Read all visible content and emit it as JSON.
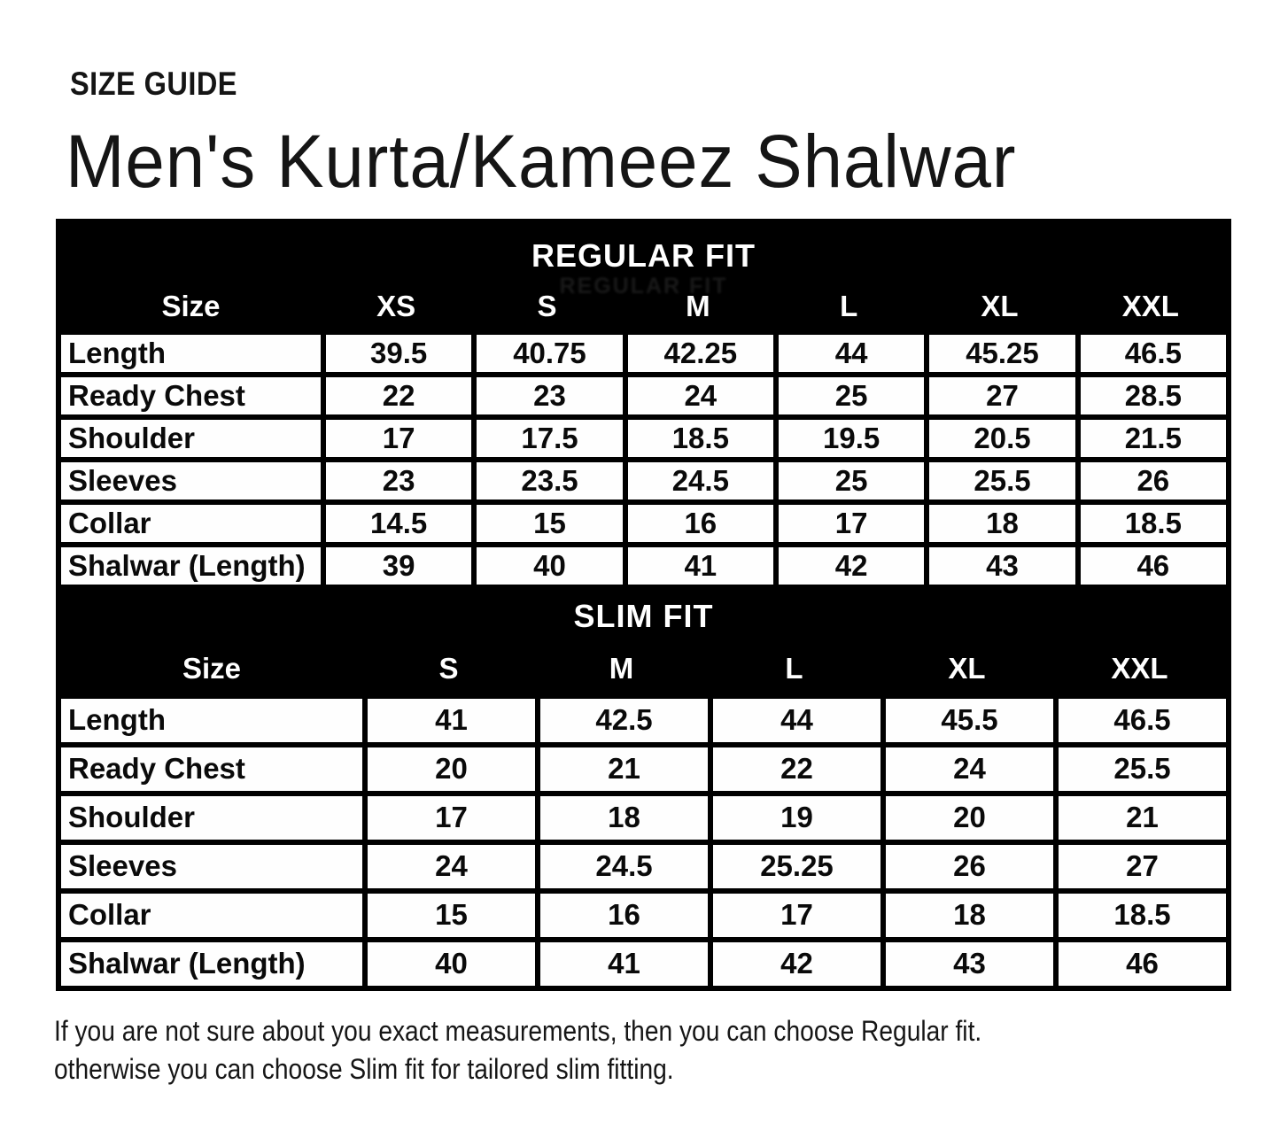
{
  "page": {
    "kicker": "SIZE GUIDE",
    "title": "Men's Kurta/Kameez Shalwar",
    "footer_line1": "If you are not sure about you exact measurements, then you can choose Regular fit.",
    "footer_line2": "otherwise you can choose Slim fit for tailored slim fitting."
  },
  "colors": {
    "band_background": "#000000",
    "band_text": "#ffffff",
    "cell_background": "#ffffff",
    "cell_text": "#000000",
    "page_background": "#ffffff"
  },
  "chart_data": [
    {
      "type": "table",
      "title": "REGULAR FIT",
      "columns": [
        "Size",
        "XS",
        "S",
        "M",
        "L",
        "XL",
        "XXL"
      ],
      "rows": [
        {
          "label": "Length",
          "values": [
            "39.5",
            "40.75",
            "42.25",
            "44",
            "45.25",
            "46.5"
          ]
        },
        {
          "label": "Ready Chest",
          "values": [
            "22",
            "23",
            "24",
            "25",
            "27",
            "28.5"
          ]
        },
        {
          "label": "Shoulder",
          "values": [
            "17",
            "17.5",
            "18.5",
            "19.5",
            "20.5",
            "21.5"
          ]
        },
        {
          "label": "Sleeves",
          "values": [
            "23",
            "23.5",
            "24.5",
            "25",
            "25.5",
            "26"
          ]
        },
        {
          "label": "Collar",
          "values": [
            "14.5",
            "15",
            "16",
            "17",
            "18",
            "18.5"
          ]
        },
        {
          "label": "Shalwar (Length)",
          "values": [
            "39",
            "40",
            "41",
            "42",
            "43",
            "46"
          ]
        }
      ]
    },
    {
      "type": "table",
      "title": "SLIM FIT",
      "columns": [
        "Size",
        "S",
        "M",
        "L",
        "XL",
        "XXL"
      ],
      "rows": [
        {
          "label": "Length",
          "values": [
            "41",
            "42.5",
            "44",
            "45.5",
            "46.5"
          ]
        },
        {
          "label": "Ready Chest",
          "values": [
            "20",
            "21",
            "22",
            "24",
            "25.5"
          ]
        },
        {
          "label": "Shoulder",
          "values": [
            "17",
            "18",
            "19",
            "20",
            "21"
          ]
        },
        {
          "label": "Sleeves",
          "values": [
            "24",
            "24.5",
            "25.25",
            "26",
            "27"
          ]
        },
        {
          "label": "Collar",
          "values": [
            "15",
            "16",
            "17",
            "18",
            "18.5"
          ]
        },
        {
          "label": "Shalwar (Length)",
          "values": [
            "40",
            "41",
            "42",
            "43",
            "46"
          ]
        }
      ]
    }
  ]
}
